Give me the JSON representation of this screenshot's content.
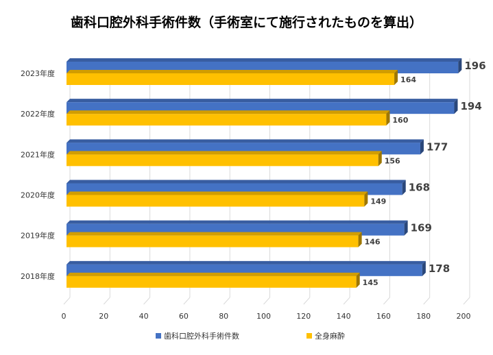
{
  "chart_data": {
    "type": "bar",
    "orientation": "horizontal",
    "title": "歯科口腔外科手術件数（手術室にて施行されたものを算出）",
    "categories": [
      "2023年度",
      "2022年度",
      "2021年度",
      "2020年度",
      "2019年度",
      "2018年度"
    ],
    "series": [
      {
        "name": "歯科口腔外科手術件数",
        "values": [
          196,
          194,
          177,
          168,
          169,
          178
        ],
        "color": "#4472C4"
      },
      {
        "name": "全身麻酔",
        "values": [
          164,
          160,
          156,
          149,
          146,
          145
        ],
        "color": "#FFC000"
      }
    ],
    "xlim": [
      0,
      200
    ],
    "xticks": [
      0,
      20,
      40,
      60,
      80,
      100,
      120,
      140,
      160,
      180,
      200
    ],
    "grid": true,
    "legend_position": "bottom"
  }
}
